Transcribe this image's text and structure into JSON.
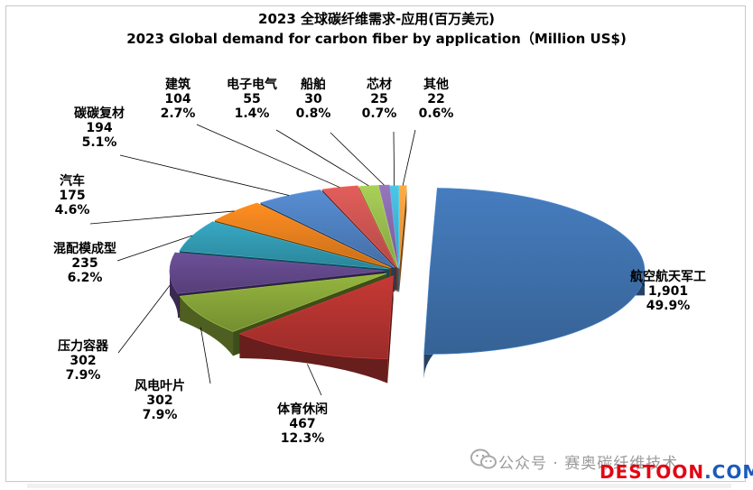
{
  "chart_data": {
    "type": "pie",
    "title": "2023 全球碳纤维需求-应用(百万美元)",
    "subtitle": "2023 Global demand for carbon fiber by application（Million US$)",
    "slices": [
      {
        "name": "航空航天军工",
        "value": "1,901",
        "amount": 1901,
        "percent": "49.9%",
        "pct": 49.9,
        "color": "#3b6aa2"
      },
      {
        "name": "体育休闲",
        "value": "467",
        "amount": 467,
        "percent": "12.3%",
        "pct": 12.3,
        "color": "#a8302d"
      },
      {
        "name": "风电叶片",
        "value": "302",
        "amount": 302,
        "percent": "7.9%",
        "pct": 7.9,
        "color": "#7e9a35"
      },
      {
        "name": "压力容器",
        "value": "302",
        "amount": 302,
        "percent": "7.9%",
        "pct": 7.9,
        "color": "#5c4482"
      },
      {
        "name": "混配模成型",
        "value": "235",
        "amount": 235,
        "percent": "6.2%",
        "pct": 6.2,
        "color": "#2f8fa6"
      },
      {
        "name": "汽车",
        "value": "175",
        "amount": 175,
        "percent": "4.6%",
        "pct": 4.6,
        "color": "#d9781c"
      },
      {
        "name": "碳碳复材",
        "value": "194",
        "amount": 194,
        "percent": "5.1%",
        "pct": 5.1,
        "color": "#4a78b4"
      },
      {
        "name": "建筑",
        "value": "104",
        "amount": 104,
        "percent": "2.7%",
        "pct": 2.7,
        "color": "#c0504d"
      },
      {
        "name": "电子电气",
        "value": "55",
        "amount": 55,
        "percent": "1.4%",
        "pct": 1.4,
        "color": "#8fb04a"
      },
      {
        "name": "船舶",
        "value": "30",
        "amount": 30,
        "percent": "0.8%",
        "pct": 0.8,
        "color": "#7f64a2"
      },
      {
        "name": "芯材",
        "value": "25",
        "amount": 25,
        "percent": "0.7%",
        "pct": 0.7,
        "color": "#3fa9c5"
      },
      {
        "name": "其他",
        "value": "22",
        "amount": 22,
        "percent": "0.6%",
        "pct": 0.6,
        "color": "#f0923a"
      }
    ]
  },
  "watermark": {
    "account": "公众号 · 赛奥碳纤维技术",
    "brand": "DESTOON",
    "tld": ".COM"
  }
}
